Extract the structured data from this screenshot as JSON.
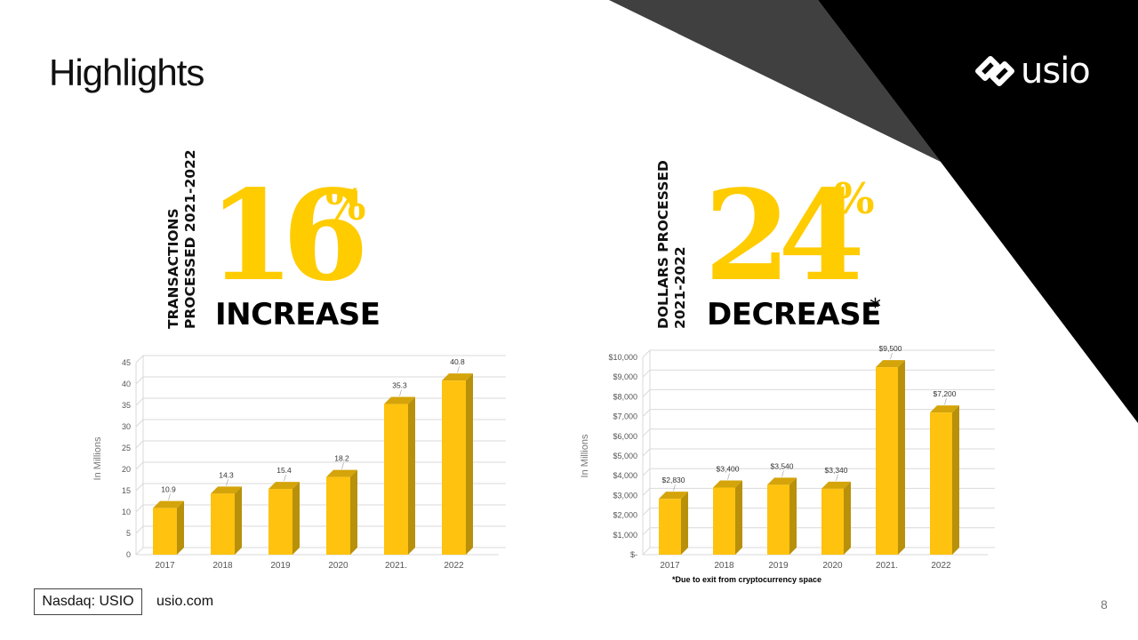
{
  "page": {
    "title": "Highlights",
    "logo_text": "usio",
    "ticker": "Nasdaq: USIO",
    "website": "usio.com",
    "page_number": "8",
    "footnote": "*Due to exit from cryptocurrency space"
  },
  "colors": {
    "accent": "#ffcc00",
    "bar": "#ffc20e",
    "bar_side": "#b8900a",
    "bar_top": "#d4a40a",
    "dark": "#000000",
    "gray": "#444444"
  },
  "transactions": {
    "label_line1": "TRANSACTIONS",
    "label_line2": "PROCESSED 2021-2022",
    "percent": "16",
    "percent_sign": "%",
    "direction": "INCREASE"
  },
  "dollars": {
    "label_line1": "DOLLARS PROCESSED",
    "label_line2": "2021-2022",
    "percent": "24",
    "percent_sign": "%",
    "direction": "DECREASE",
    "asterisk": "*"
  },
  "chart_data": [
    {
      "type": "bar",
      "categories": [
        "2017",
        "2018",
        "2019",
        "2020",
        "2021.",
        "2022"
      ],
      "values": [
        10.9,
        14.3,
        15.4,
        18.2,
        35.3,
        40.8
      ],
      "value_labels": [
        "10.9",
        "14.3",
        "15.4",
        "18.2",
        "35.3",
        "40.8"
      ],
      "ylabel": "In Millions",
      "ylim": [
        0,
        45
      ],
      "yticks": [
        "0",
        "5",
        "10",
        "15",
        "20",
        "25",
        "30",
        "35",
        "40",
        "45"
      ],
      "ytick_values": [
        0,
        5,
        10,
        15,
        20,
        25,
        30,
        35,
        40,
        45
      ],
      "grid": true
    },
    {
      "type": "bar",
      "categories": [
        "2017",
        "2018",
        "2019",
        "2020",
        "2021.",
        "2022"
      ],
      "values": [
        2830,
        3400,
        3540,
        3340,
        9500,
        7200
      ],
      "value_labels": [
        "$2,830",
        "$3,400",
        "$3,540",
        "$3,340",
        "$9,500",
        "$7,200"
      ],
      "ylabel": "In Millions",
      "ylim": [
        0,
        10000
      ],
      "yticks": [
        "$-",
        "$1,000",
        "$2,000",
        "$3,000",
        "$4,000",
        "$5,000",
        "$6,000",
        "$7,000",
        "$8,000",
        "$9,000",
        "$10,000"
      ],
      "ytick_values": [
        0,
        1000,
        2000,
        3000,
        4000,
        5000,
        6000,
        7000,
        8000,
        9000,
        10000
      ],
      "grid": true
    }
  ]
}
